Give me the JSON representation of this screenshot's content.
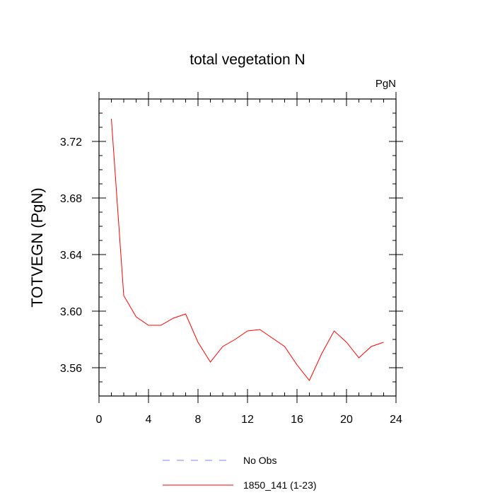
{
  "chart_data": {
    "type": "line",
    "title": "total vegetation N",
    "units_label": "PgN",
    "xlabel": "",
    "ylabel": "TOTVEGN  (PgN)",
    "xlim": [
      0,
      24
    ],
    "ylim": [
      3.54,
      3.75
    ],
    "x_ticks": [
      0,
      4,
      8,
      12,
      16,
      20,
      24
    ],
    "x_tick_labels": [
      "0",
      "4",
      "8",
      "12",
      "16",
      "20",
      "24"
    ],
    "y_ticks": [
      3.56,
      3.6,
      3.64,
      3.68,
      3.72
    ],
    "y_tick_labels": [
      "3.56",
      "3.60",
      "3.64",
      "3.68",
      "3.72"
    ],
    "grid": false,
    "legend_position": "bottom",
    "series": [
      {
        "name": "1850_141 (1-23)",
        "color": "#ff0000",
        "style": "solid",
        "x": [
          1,
          2,
          3,
          4,
          5,
          6,
          7,
          8,
          9,
          10,
          11,
          12,
          13,
          14,
          15,
          16,
          17,
          18,
          19,
          20,
          21,
          22,
          23
        ],
        "y": [
          3.736,
          3.611,
          3.596,
          3.59,
          3.59,
          3.595,
          3.598,
          3.578,
          3.564,
          3.575,
          3.58,
          3.586,
          3.587,
          3.581,
          3.575,
          3.562,
          3.551,
          3.57,
          3.586,
          3.578,
          3.567,
          3.575,
          3.578
        ]
      },
      {
        "name": "No Obs",
        "color": "#8080ff",
        "style": "dashed",
        "x": [],
        "y": []
      }
    ]
  }
}
